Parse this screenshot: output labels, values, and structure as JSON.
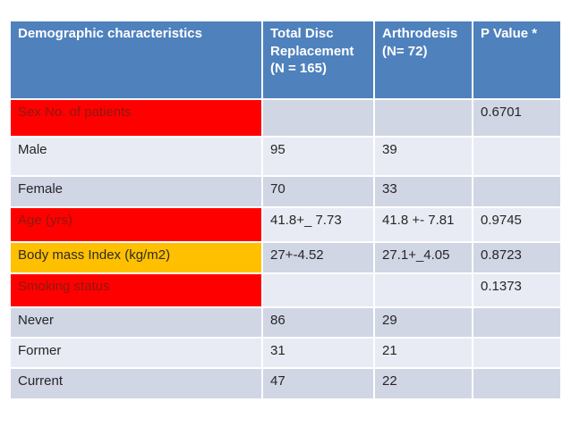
{
  "chart_data": {
    "type": "table",
    "title": "Demographic characteristics table",
    "columns": [
      "Demographic characteristics",
      "Total Disc Replacement (N = 165)",
      "Arthrodesis (N= 72)",
      "P Value *"
    ],
    "rows": [
      {
        "label": "Sex No. of patients",
        "tdr": "",
        "arthro": "",
        "p": "0.6701",
        "highlight": "red"
      },
      {
        "label": "Male",
        "tdr": "95",
        "arthro": "39",
        "p": "",
        "highlight": "none"
      },
      {
        "label": "Female",
        "tdr": "70",
        "arthro": "33",
        "p": "",
        "highlight": "none"
      },
      {
        "label": "Age (yrs)",
        "tdr": "41.8+_ 7.73",
        "arthro": "41.8 +- 7.81",
        "p": "0.9745",
        "highlight": "red"
      },
      {
        "label": "Body mass Index (kg/m2)",
        "tdr": "27+-4.52",
        "arthro": "27.1+_4.05",
        "p": "0.8723",
        "highlight": "orange"
      },
      {
        "label": "Smoking status",
        "tdr": "",
        "arthro": "",
        "p": "0.1373",
        "highlight": "red"
      },
      {
        "label": "Never",
        "tdr": "86",
        "arthro": "29",
        "p": "",
        "highlight": "none"
      },
      {
        "label": "Former",
        "tdr": "31",
        "arthro": "21",
        "p": "",
        "highlight": "none"
      },
      {
        "label": "Current",
        "tdr": "47",
        "arthro": "22",
        "p": "",
        "highlight": "none"
      }
    ],
    "layout_hints": {
      "banding": [
        "dark",
        "light",
        "dark",
        "light",
        "dark",
        "light",
        "dark",
        "light",
        "dark"
      ],
      "grid": "white 2px borders",
      "header_position": "top"
    }
  },
  "colors": {
    "header_bg": "#4F81BD",
    "header_text": "#FFFFFF",
    "band_dark": "#D1D6E5",
    "band_light": "#E9EBF4",
    "red_highlight_bg": "#FF0000",
    "red_highlight_text": "#8B1A10",
    "orange_highlight_bg": "#FFC000",
    "body_text": "#262626",
    "border": "#FFFFFF",
    "page_bg": "#FFFFFF"
  }
}
